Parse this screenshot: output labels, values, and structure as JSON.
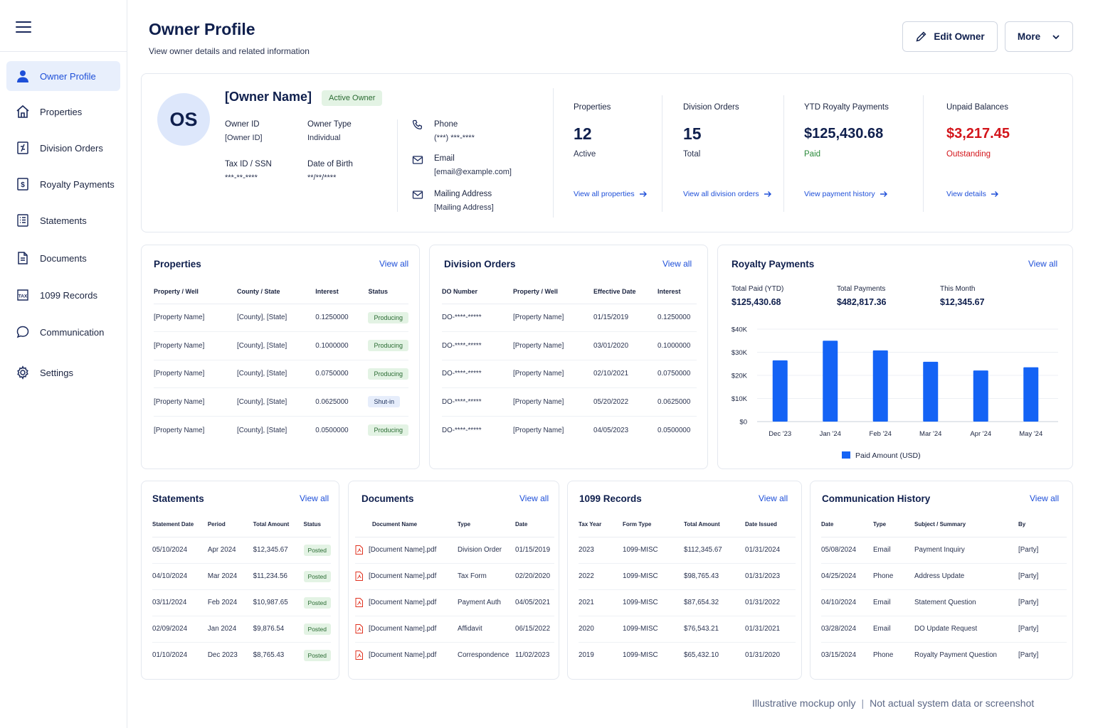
{
  "sidebar": {
    "items": [
      {
        "label": "Owner Profile",
        "icon": "user-icon",
        "active": true
      },
      {
        "label": "Properties",
        "icon": "home-icon"
      },
      {
        "label": "Division Orders",
        "icon": "division-doc-icon"
      },
      {
        "label": "Royalty Payments",
        "icon": "dollar-doc-icon"
      },
      {
        "label": "Statements",
        "icon": "list-doc-icon"
      },
      {
        "label": "Documents",
        "icon": "document-icon"
      },
      {
        "label": "1099 Records",
        "icon": "tax-icon"
      },
      {
        "label": "Communication",
        "icon": "chat-icon"
      },
      {
        "label": "Settings",
        "icon": "gear-icon"
      }
    ]
  },
  "header": {
    "title": "Owner Profile",
    "subtitle": "View owner details and related information",
    "edit_label": "Edit Owner",
    "more_label": "More"
  },
  "profile": {
    "initials": "OS",
    "name": "[Owner Name]",
    "status": "Active Owner",
    "owner_id_label": "Owner ID",
    "owner_id": "[Owner ID]",
    "owner_type_label": "Owner Type",
    "owner_type": "Individual",
    "tax_label": "Tax ID / SSN",
    "tax_value": "***-**-****",
    "dob_label": "Date of Birth",
    "dob_value": "**/**/****",
    "phone_label": "Phone",
    "phone_value": "(***) ***-****",
    "email_label": "Email",
    "email_value": "[email@example.com]",
    "mail_label": "Mailing Address",
    "mail_value": "[Mailing Address]"
  },
  "stats": [
    {
      "label": "Properties",
      "value": "12",
      "sub": "Active",
      "link": "View all properties"
    },
    {
      "label": "Division Orders",
      "value": "15",
      "sub": "Total",
      "link": "View all division orders"
    },
    {
      "label": "YTD Royalty Payments",
      "value": "$125,430.68",
      "sub": "Paid",
      "link": "View payment history",
      "accent": "#2a8a3a"
    },
    {
      "label": "Unpaid Balances",
      "value": "$3,217.45",
      "sub": "Outstanding",
      "link": "View details",
      "accent": "#d3151b"
    }
  ],
  "view_all": "View all",
  "properties": {
    "title": "Properties",
    "headers": [
      "Property / Well",
      "County / State",
      "Interest",
      "Status"
    ],
    "rows": [
      [
        "[Property Name]",
        "[County], [State]",
        "0.1250000",
        "Producing"
      ],
      [
        "[Property Name]",
        "[County], [State]",
        "0.1000000",
        "Producing"
      ],
      [
        "[Property Name]",
        "[County], [State]",
        "0.0750000",
        "Producing"
      ],
      [
        "[Property Name]",
        "[County], [State]",
        "0.0625000",
        "Shut-in"
      ],
      [
        "[Property Name]",
        "[County], [State]",
        "0.0500000",
        "Producing"
      ]
    ]
  },
  "division_orders": {
    "title": "Division Orders",
    "headers": [
      "DO Number",
      "Property / Well",
      "Effective Date",
      "Interest"
    ],
    "rows": [
      [
        "DO-****-*****",
        "[Property Name]",
        "01/15/2019",
        "0.1250000"
      ],
      [
        "DO-****-*****",
        "[Property Name]",
        "03/01/2020",
        "0.1000000"
      ],
      [
        "DO-****-*****",
        "[Property Name]",
        "02/10/2021",
        "0.0750000"
      ],
      [
        "DO-****-*****",
        "[Property Name]",
        "05/20/2022",
        "0.0625000"
      ],
      [
        "DO-****-*****",
        "[Property Name]",
        "04/05/2023",
        "0.0500000"
      ]
    ]
  },
  "royalty": {
    "title": "Royalty Payments",
    "total_paid_label": "Total Paid (YTD)",
    "total_paid": "$125,430.68",
    "total_payments_label": "Total Payments",
    "total_payments": "$482,817.36",
    "this_month_label": "This Month",
    "this_month": "$12,345.67"
  },
  "chart_data": {
    "type": "bar",
    "categories": [
      "Dec '23",
      "Jan '24",
      "Feb '24",
      "Mar '24",
      "Apr '24",
      "May '24"
    ],
    "series": [
      {
        "name": "Paid Amount (USD)",
        "values": [
          26500,
          35000,
          30800,
          25900,
          22100,
          23500
        ],
        "color": "#1463f5"
      }
    ],
    "yticks": [
      "$0",
      "$10K",
      "$20K",
      "$30K",
      "$40K"
    ],
    "ylim": [
      0,
      40000
    ],
    "grid": true,
    "legend": "bottom"
  },
  "statements": {
    "title": "Statements",
    "headers": [
      "Statement Date",
      "Period",
      "Total Amount",
      "Status"
    ],
    "rows": [
      [
        "05/10/2024",
        "Apr 2024",
        "$12,345.67",
        "Posted"
      ],
      [
        "04/10/2024",
        "Mar 2024",
        "$11,234.56",
        "Posted"
      ],
      [
        "03/11/2024",
        "Feb 2024",
        "$10,987.65",
        "Posted"
      ],
      [
        "02/09/2024",
        "Jan 2024",
        "$9,876.54",
        "Posted"
      ],
      [
        "01/10/2024",
        "Dec 2023",
        "$8,765.43",
        "Posted"
      ]
    ]
  },
  "documents": {
    "title": "Documents",
    "headers": [
      "Document Name",
      "Type",
      "Date"
    ],
    "rows": [
      [
        "[Document Name].pdf",
        "Division Order",
        "01/15/2019"
      ],
      [
        "[Document Name].pdf",
        "Tax Form",
        "02/20/2020"
      ],
      [
        "[Document Name].pdf",
        "Payment Auth",
        "04/05/2021"
      ],
      [
        "[Document Name].pdf",
        "Affidavit",
        "06/15/2022"
      ],
      [
        "[Document Name].pdf",
        "Correspondence",
        "11/02/2023"
      ]
    ]
  },
  "records_1099": {
    "title": "1099 Records",
    "headers": [
      "Tax Year",
      "Form Type",
      "Total Amount",
      "Date Issued"
    ],
    "rows": [
      [
        "2023",
        "1099-MISC",
        "$112,345.67",
        "01/31/2024"
      ],
      [
        "2022",
        "1099-MISC",
        "$98,765.43",
        "01/31/2023"
      ],
      [
        "2021",
        "1099-MISC",
        "$87,654.32",
        "01/31/2022"
      ],
      [
        "2020",
        "1099-MISC",
        "$76,543.21",
        "01/31/2021"
      ],
      [
        "2019",
        "1099-MISC",
        "$65,432.10",
        "01/31/2020"
      ]
    ]
  },
  "communication": {
    "title": "Communication History",
    "headers": [
      "Date",
      "Type",
      "Subject / Summary",
      "By"
    ],
    "rows": [
      [
        "05/08/2024",
        "Email",
        "Payment Inquiry",
        "[Party]"
      ],
      [
        "04/25/2024",
        "Phone",
        "Address Update",
        "[Party]"
      ],
      [
        "04/10/2024",
        "Email",
        "Statement Question",
        "[Party]"
      ],
      [
        "03/28/2024",
        "Email",
        "DO Update Request",
        "[Party]"
      ],
      [
        "03/15/2024",
        "Phone",
        "Royalty Payment Question",
        "[Party]"
      ]
    ]
  },
  "footer": {
    "left": "Illustrative mockup only",
    "sep": "|",
    "right": "Not actual system data or screenshot"
  }
}
